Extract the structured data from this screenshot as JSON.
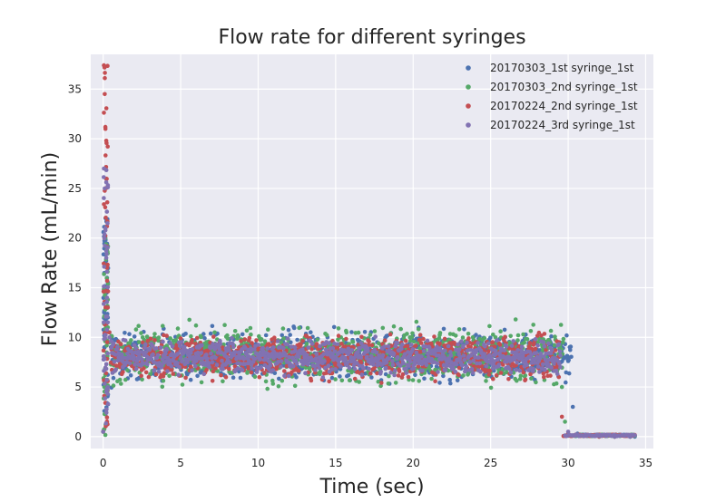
{
  "chart_data": {
    "type": "scatter",
    "title": "Flow rate for different syringes",
    "xlabel": "Time (sec)",
    "ylabel": "Flow Rate (mL/min)",
    "xlim": [
      -0.8,
      35.5
    ],
    "ylim": [
      -1.2,
      38.5
    ],
    "xticks": [
      0,
      5,
      10,
      15,
      20,
      25,
      30,
      35
    ],
    "yticks": [
      0,
      5,
      10,
      15,
      20,
      25,
      30,
      35
    ],
    "grid": true,
    "background": "#EAEAF2",
    "legend": "top-right",
    "series": [
      {
        "name": "20170303_1st syringe_1st",
        "color": "#4C72B0",
        "x": [
          0.0,
          0.08,
          0.15,
          0.22,
          0.3,
          0.4,
          1,
          2,
          3,
          4,
          5,
          6,
          7,
          8,
          9,
          10,
          11,
          12,
          13,
          14,
          15,
          16,
          17,
          18,
          19,
          20,
          21,
          22,
          23,
          24,
          25,
          26,
          27,
          28,
          29,
          30.0,
          30.3,
          30.6,
          31,
          32,
          33,
          34,
          34.3
        ],
        "y": [
          0.5,
          9.0,
          22.0,
          19.0,
          12.0,
          10.5,
          8.0,
          8.2,
          7.8,
          8.1,
          8.0,
          8.2,
          7.9,
          8.1,
          8.0,
          8.2,
          7.8,
          8.0,
          8.1,
          7.9,
          8.0,
          8.2,
          7.9,
          8.0,
          8.1,
          7.9,
          8.0,
          8.2,
          7.8,
          8.0,
          8.1,
          7.9,
          8.0,
          8.1,
          7.9,
          8.0,
          3.0,
          0.3,
          0.1,
          0.05,
          0.0,
          0.0,
          0.0
        ],
        "band_x": [
          0.5,
          30.2
        ],
        "band_y": [
          5.5,
          10.8
        ]
      },
      {
        "name": "20170303_2nd syringe_1st",
        "color": "#55A868",
        "x": [
          0.0,
          0.08,
          0.15,
          0.22,
          0.3,
          0.4,
          1,
          2,
          3,
          4,
          5,
          6,
          7,
          8,
          9,
          10,
          11,
          12,
          13,
          14,
          15,
          16,
          17,
          18,
          19,
          20,
          21,
          22,
          23,
          24,
          25,
          26,
          27,
          28,
          29,
          29.6,
          29.8,
          30.0,
          30.5,
          31,
          32,
          33,
          34
        ],
        "y": [
          0.5,
          5.0,
          20.0,
          14.0,
          11.0,
          9.5,
          7.8,
          7.9,
          7.6,
          8.0,
          7.8,
          8.1,
          7.7,
          7.9,
          7.8,
          8.0,
          7.6,
          7.9,
          8.0,
          7.7,
          7.9,
          8.0,
          7.8,
          7.9,
          8.0,
          7.8,
          7.9,
          8.0,
          7.7,
          7.9,
          8.0,
          7.8,
          7.9,
          8.0,
          7.8,
          5.0,
          1.5,
          0.3,
          0.1,
          0.05,
          0.0,
          0.0,
          0.0
        ],
        "band_x": [
          0.5,
          29.7
        ],
        "band_y": [
          5.2,
          11.2
        ]
      },
      {
        "name": "20170224_2nd syringe_1st",
        "color": "#C44E52",
        "x": [
          0.0,
          0.05,
          0.1,
          0.15,
          0.2,
          0.25,
          0.3,
          0.4,
          1,
          2,
          3,
          4,
          5,
          6,
          7,
          8,
          9,
          10,
          11,
          12,
          13,
          14,
          15,
          16,
          17,
          18,
          19,
          20,
          21,
          22,
          23,
          24,
          25,
          26,
          27,
          28,
          29,
          29.4,
          29.6,
          30.0,
          31,
          32,
          33,
          34
        ],
        "y": [
          0.5,
          37.4,
          34.5,
          31.0,
          29.8,
          17.0,
          13.0,
          10.5,
          8.0,
          8.1,
          7.8,
          8.0,
          7.9,
          8.1,
          7.8,
          8.0,
          7.9,
          8.1,
          7.8,
          8.0,
          8.1,
          7.9,
          8.0,
          8.1,
          7.9,
          8.0,
          8.1,
          7.8,
          8.0,
          8.1,
          7.9,
          8.0,
          8.1,
          7.9,
          8.0,
          8.1,
          7.9,
          6.0,
          2.0,
          0.3,
          0.05,
          0.0,
          0.0,
          0.0
        ],
        "band_x": [
          0.5,
          29.4
        ],
        "band_y": [
          5.8,
          10.3
        ]
      },
      {
        "name": "20170224_3rd syringe_1st",
        "color": "#8172B2",
        "x": [
          0.0,
          0.05,
          0.1,
          0.15,
          0.2,
          0.25,
          0.3,
          0.4,
          1,
          2,
          3,
          4,
          5,
          6,
          7,
          8,
          9,
          10,
          11,
          12,
          13,
          14,
          15,
          16,
          17,
          18,
          19,
          20,
          21,
          22,
          23,
          24,
          25,
          26,
          27,
          28,
          29,
          29.5,
          30.0,
          30.5,
          31,
          32,
          33,
          34
        ],
        "y": [
          0.5,
          27.0,
          25.0,
          21.0,
          18.0,
          14.0,
          11.5,
          10.0,
          8.0,
          8.0,
          7.9,
          8.0,
          7.9,
          8.0,
          7.9,
          8.0,
          7.9,
          8.0,
          7.9,
          8.0,
          8.0,
          7.9,
          8.0,
          8.0,
          7.9,
          8.0,
          8.0,
          7.9,
          8.0,
          8.0,
          7.9,
          8.0,
          8.0,
          7.9,
          8.0,
          8.0,
          7.9,
          7.0,
          0.5,
          0.2,
          0.1,
          0.05,
          0.0,
          0.0
        ],
        "band_x": [
          0.5,
          29.5
        ],
        "band_y": [
          6.3,
          9.7
        ]
      }
    ]
  }
}
